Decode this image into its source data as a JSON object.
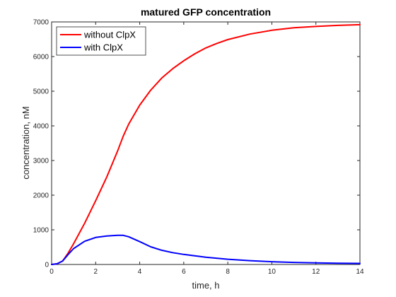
{
  "chart_data": {
    "type": "line",
    "title": "matured GFP concentration",
    "xlabel": "time, h",
    "ylabel": "concentration, nM",
    "xlim": [
      0,
      14
    ],
    "ylim": [
      0,
      7000
    ],
    "xticks": [
      0,
      2,
      4,
      6,
      8,
      10,
      12,
      14
    ],
    "yticks": [
      0,
      1000,
      2000,
      3000,
      4000,
      5000,
      6000,
      7000
    ],
    "grid": false,
    "legend_position": "top-left",
    "series": [
      {
        "name": "without ClpX",
        "color": "#ff0000",
        "x": [
          0,
          0.25,
          0.5,
          0.75,
          1,
          1.5,
          2,
          2.5,
          3,
          3.25,
          3.5,
          4,
          4.5,
          5,
          5.5,
          6,
          6.5,
          7,
          7.5,
          8,
          9,
          10,
          11,
          12,
          13,
          14
        ],
        "y": [
          0,
          20,
          100,
          330,
          600,
          1190,
          1840,
          2520,
          3280,
          3700,
          4050,
          4600,
          5030,
          5380,
          5650,
          5880,
          6080,
          6250,
          6380,
          6490,
          6650,
          6760,
          6830,
          6870,
          6900,
          6920
        ]
      },
      {
        "name": "with ClpX",
        "color": "#0000ff",
        "x": [
          0,
          0.25,
          0.5,
          0.75,
          1,
          1.5,
          2,
          2.5,
          3,
          3.25,
          3.5,
          4,
          4.5,
          5,
          5.5,
          6,
          7,
          8,
          9,
          10,
          11,
          12,
          13,
          14
        ],
        "y": [
          0,
          20,
          100,
          290,
          460,
          670,
          780,
          820,
          840,
          840,
          800,
          660,
          510,
          410,
          340,
          290,
          210,
          150,
          110,
          80,
          60,
          45,
          35,
          30
        ]
      }
    ]
  }
}
